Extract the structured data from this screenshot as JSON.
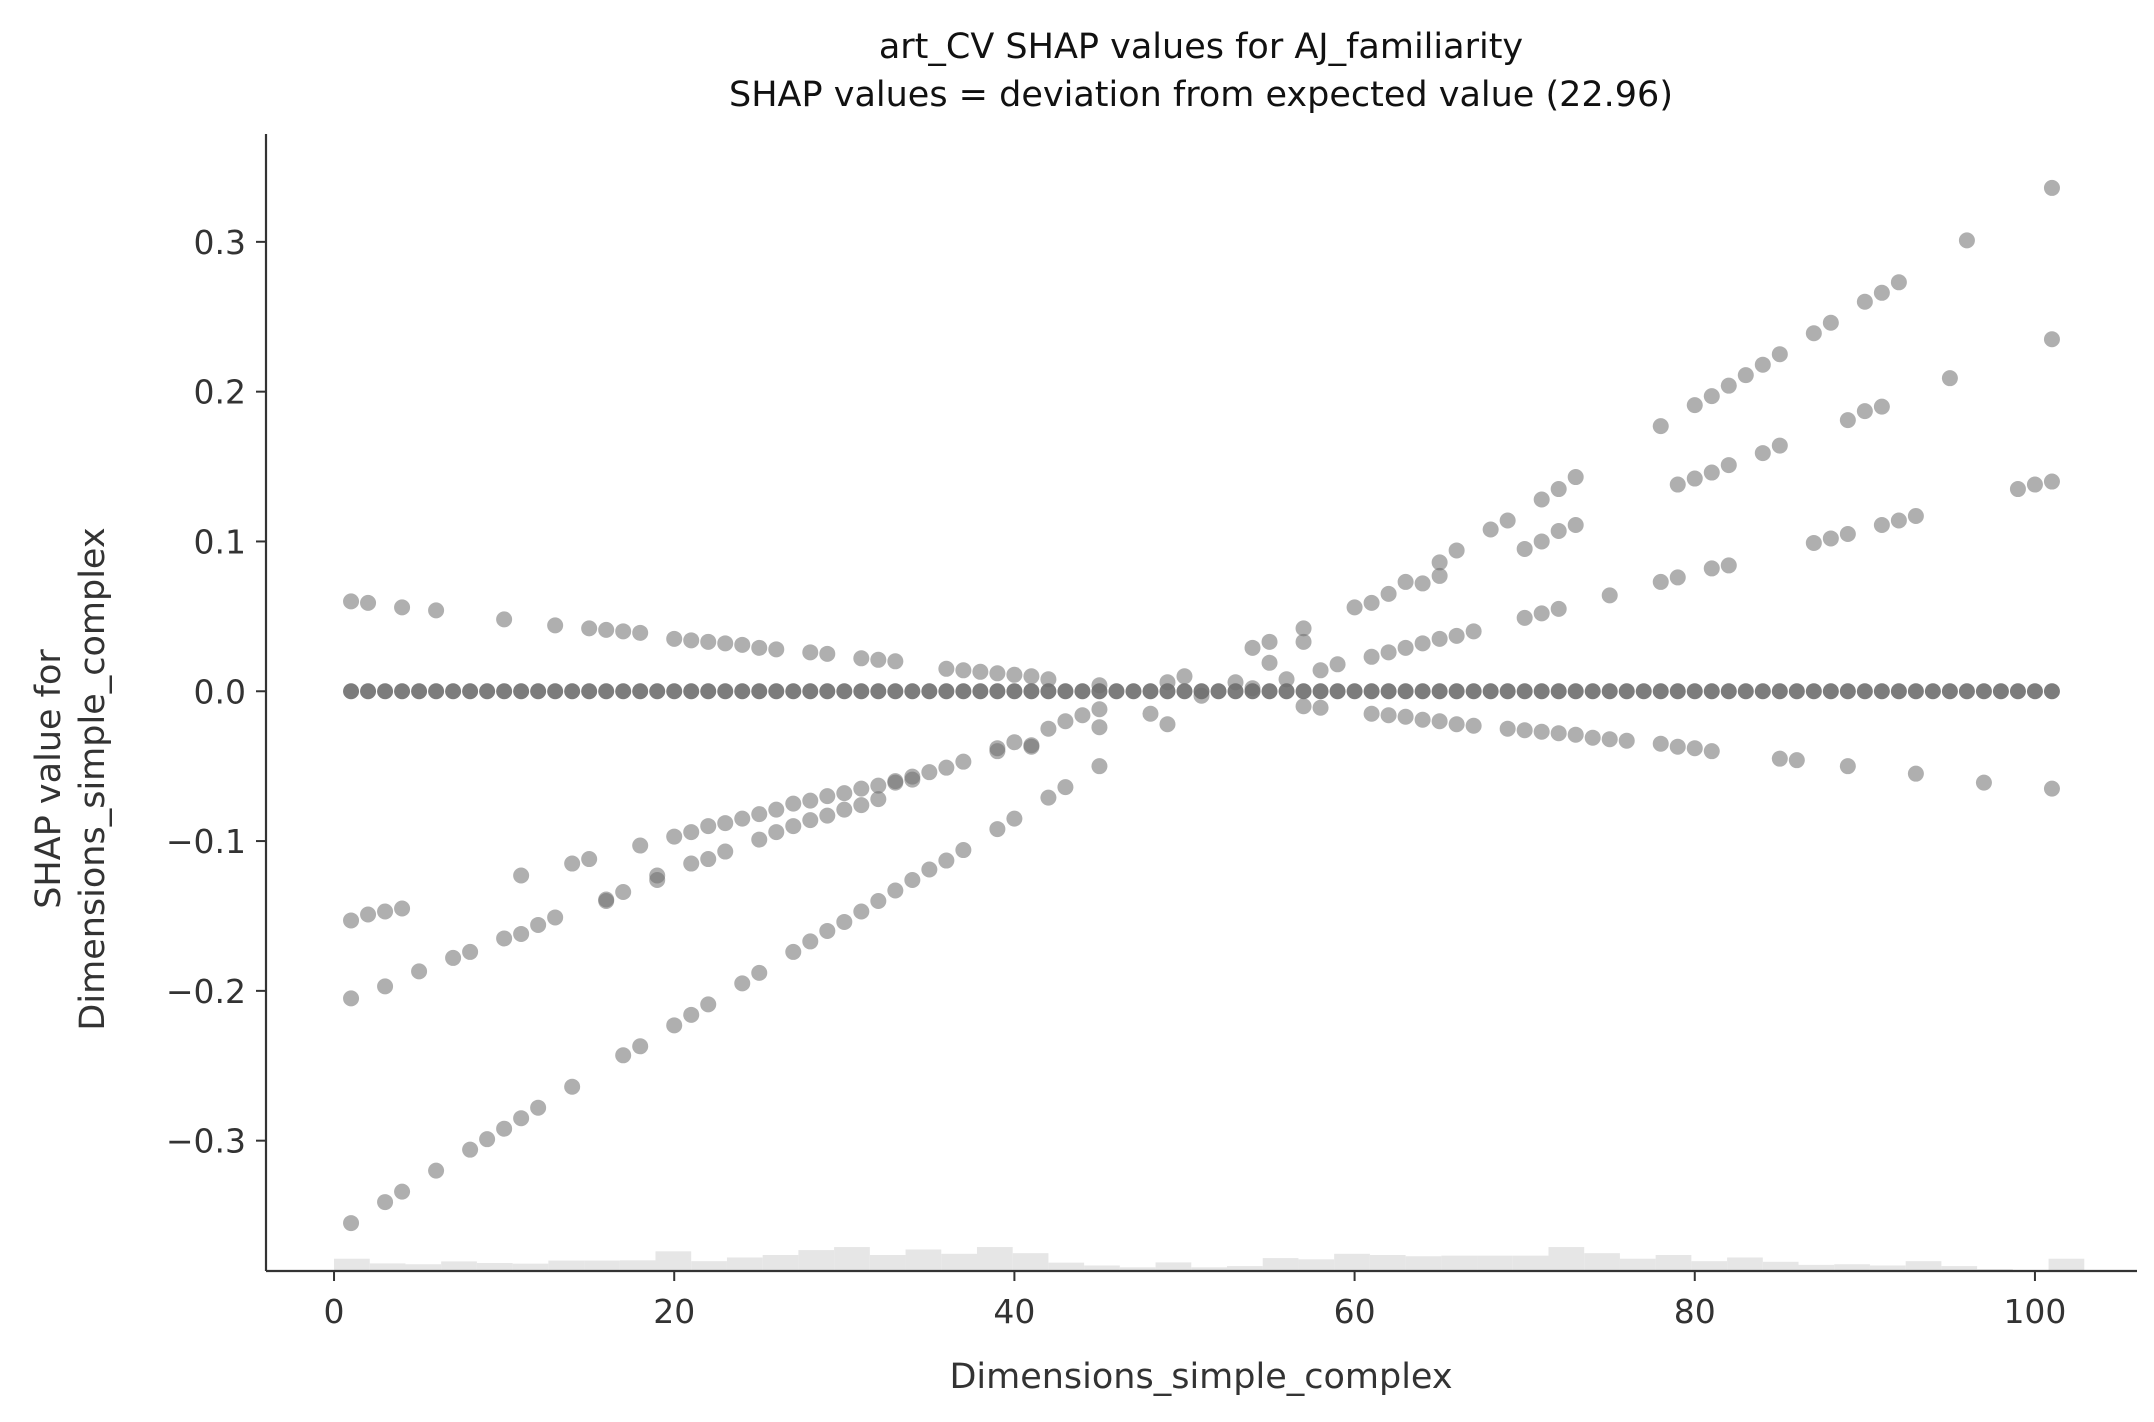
{
  "chart_data": {
    "type": "scatter",
    "title": "art_CV SHAP values for AJ_familiarity",
    "subtitle": "SHAP values = deviation from expected value (22.96)",
    "xlabel": "Dimensions_simple_complex",
    "ylabel": [
      "SHAP value for",
      "Dimensions_simple_complex"
    ],
    "xlim": [
      -4,
      106
    ],
    "ylim": [
      -0.387,
      0.372
    ],
    "xticks": [
      0,
      20,
      40,
      60,
      80,
      100
    ],
    "xtick_labels": [
      "0",
      "20",
      "40",
      "60",
      "80",
      "100"
    ],
    "yticks": [
      -0.3,
      -0.2,
      -0.1,
      0.0,
      0.1,
      0.2,
      0.3
    ],
    "ytick_labels": [
      "−0.3",
      "−0.2",
      "−0.1",
      "0.0",
      "0.1",
      "0.2",
      "0.3"
    ],
    "grid": false,
    "colors": {
      "points": "#6e6e6e",
      "histogram": "#e6e6e6",
      "axis": "#333333"
    },
    "zero_line": {
      "x_start": 1,
      "x_end": 101,
      "step": 1,
      "y": 0.0
    },
    "points": [
      [
        1,
        0.06
      ],
      [
        2,
        0.059
      ],
      [
        4,
        0.056
      ],
      [
        6,
        0.054
      ],
      [
        10,
        0.048
      ],
      [
        13,
        0.044
      ],
      [
        15,
        0.042
      ],
      [
        16,
        0.041
      ],
      [
        17,
        0.04
      ],
      [
        18,
        0.039
      ],
      [
        20,
        0.035
      ],
      [
        21,
        0.034
      ],
      [
        22,
        0.033
      ],
      [
        23,
        0.032
      ],
      [
        24,
        0.031
      ],
      [
        25,
        0.029
      ],
      [
        26,
        0.028
      ],
      [
        28,
        0.026
      ],
      [
        29,
        0.025
      ],
      [
        31,
        0.022
      ],
      [
        32,
        0.021
      ],
      [
        33,
        0.02
      ],
      [
        36,
        0.015
      ],
      [
        37,
        0.014
      ],
      [
        38,
        0.013
      ],
      [
        39,
        0.012
      ],
      [
        40,
        0.011
      ],
      [
        41,
        0.01
      ],
      [
        42,
        0.008
      ],
      [
        45,
        0.004
      ],
      [
        1,
        -0.153
      ],
      [
        2,
        -0.149
      ],
      [
        3,
        -0.147
      ],
      [
        4,
        -0.145
      ],
      [
        8,
        -0.174
      ],
      [
        10,
        -0.165
      ],
      [
        11,
        -0.123
      ],
      [
        12,
        -0.156
      ],
      [
        13,
        -0.151
      ],
      [
        14,
        -0.115
      ],
      [
        15,
        -0.112
      ],
      [
        16,
        -0.14
      ],
      [
        17,
        -0.134
      ],
      [
        18,
        -0.103
      ],
      [
        19,
        -0.126
      ],
      [
        20,
        -0.097
      ],
      [
        21,
        -0.094
      ],
      [
        22,
        -0.09
      ],
      [
        23,
        -0.088
      ],
      [
        24,
        -0.085
      ],
      [
        25,
        -0.082
      ],
      [
        26,
        -0.079
      ],
      [
        27,
        -0.075
      ],
      [
        28,
        -0.073
      ],
      [
        29,
        -0.07
      ],
      [
        30,
        -0.068
      ],
      [
        31,
        -0.065
      ],
      [
        32,
        -0.063
      ],
      [
        33,
        -0.06
      ],
      [
        34,
        -0.057
      ],
      [
        35,
        -0.054
      ],
      [
        36,
        -0.051
      ],
      [
        37,
        -0.047
      ],
      [
        39,
        -0.038
      ],
      [
        40,
        -0.034
      ],
      [
        41,
        -0.037
      ],
      [
        42,
        -0.025
      ],
      [
        43,
        -0.02
      ],
      [
        44,
        -0.016
      ],
      [
        45,
        -0.012
      ],
      [
        1,
        -0.205
      ],
      [
        3,
        -0.197
      ],
      [
        5,
        -0.187
      ],
      [
        7,
        -0.178
      ],
      [
        11,
        -0.162
      ],
      [
        16,
        -0.139
      ],
      [
        19,
        -0.123
      ],
      [
        21,
        -0.115
      ],
      [
        22,
        -0.112
      ],
      [
        23,
        -0.107
      ],
      [
        25,
        -0.099
      ],
      [
        26,
        -0.094
      ],
      [
        27,
        -0.09
      ],
      [
        28,
        -0.086
      ],
      [
        29,
        -0.083
      ],
      [
        30,
        -0.079
      ],
      [
        31,
        -0.076
      ],
      [
        32,
        -0.072
      ],
      [
        33,
        -0.061
      ],
      [
        34,
        -0.059
      ],
      [
        39,
        -0.04
      ],
      [
        41,
        -0.036
      ],
      [
        45,
        -0.024
      ],
      [
        1,
        -0.355
      ],
      [
        3,
        -0.341
      ],
      [
        4,
        -0.334
      ],
      [
        6,
        -0.32
      ],
      [
        8,
        -0.306
      ],
      [
        9,
        -0.299
      ],
      [
        10,
        -0.292
      ],
      [
        11,
        -0.285
      ],
      [
        12,
        -0.278
      ],
      [
        14,
        -0.264
      ],
      [
        17,
        -0.243
      ],
      [
        18,
        -0.237
      ],
      [
        20,
        -0.223
      ],
      [
        21,
        -0.216
      ],
      [
        22,
        -0.209
      ],
      [
        24,
        -0.195
      ],
      [
        25,
        -0.188
      ],
      [
        27,
        -0.174
      ],
      [
        28,
        -0.167
      ],
      [
        29,
        -0.16
      ],
      [
        30,
        -0.154
      ],
      [
        31,
        -0.147
      ],
      [
        32,
        -0.14
      ],
      [
        33,
        -0.133
      ],
      [
        34,
        -0.126
      ],
      [
        35,
        -0.119
      ],
      [
        36,
        -0.113
      ],
      [
        37,
        -0.106
      ],
      [
        39,
        -0.092
      ],
      [
        40,
        -0.085
      ],
      [
        42,
        -0.071
      ],
      [
        43,
        -0.064
      ],
      [
        45,
        -0.05
      ],
      [
        48,
        -0.015
      ],
      [
        49,
        -0.022
      ],
      [
        49,
        0.006
      ],
      [
        50,
        0.01
      ],
      [
        51,
        -0.003
      ],
      [
        53,
        0.006
      ],
      [
        54,
        0.002
      ],
      [
        54,
        0.029
      ],
      [
        55,
        0.033
      ],
      [
        55,
        0.019
      ],
      [
        56,
        0.008
      ],
      [
        57,
        0.042
      ],
      [
        57,
        0.033
      ],
      [
        57,
        -0.01
      ],
      [
        58,
        -0.011
      ],
      [
        58,
        0.014
      ],
      [
        59,
        0.018
      ],
      [
        60,
        0.056
      ],
      [
        61,
        0.059
      ],
      [
        62,
        0.065
      ],
      [
        63,
        0.073
      ],
      [
        64,
        0.072
      ],
      [
        65,
        0.086
      ],
      [
        65,
        0.077
      ],
      [
        66,
        0.094
      ],
      [
        68,
        0.108
      ],
      [
        69,
        0.114
      ],
      [
        70,
        0.095
      ],
      [
        71,
        0.1
      ],
      [
        71,
        0.128
      ],
      [
        72,
        0.135
      ],
      [
        72,
        0.107
      ],
      [
        73,
        0.111
      ],
      [
        73,
        0.143
      ],
      [
        61,
        0.023
      ],
      [
        62,
        0.026
      ],
      [
        63,
        0.029
      ],
      [
        64,
        0.032
      ],
      [
        65,
        0.035
      ],
      [
        66,
        0.037
      ],
      [
        67,
        0.04
      ],
      [
        70,
        0.049
      ],
      [
        71,
        0.052
      ],
      [
        72,
        0.055
      ],
      [
        75,
        0.064
      ],
      [
        78,
        0.073
      ],
      [
        79,
        0.076
      ],
      [
        81,
        0.082
      ],
      [
        82,
        0.084
      ],
      [
        87,
        0.099
      ],
      [
        88,
        0.102
      ],
      [
        89,
        0.105
      ],
      [
        91,
        0.111
      ],
      [
        92,
        0.114
      ],
      [
        93,
        0.117
      ],
      [
        99,
        0.135
      ],
      [
        100,
        0.138
      ],
      [
        101,
        0.14
      ],
      [
        78,
        0.177
      ],
      [
        79,
        0.138
      ],
      [
        80,
        0.191
      ],
      [
        80,
        0.142
      ],
      [
        81,
        0.197
      ],
      [
        81,
        0.146
      ],
      [
        82,
        0.204
      ],
      [
        82,
        0.151
      ],
      [
        83,
        0.211
      ],
      [
        84,
        0.218
      ],
      [
        84,
        0.159
      ],
      [
        85,
        0.225
      ],
      [
        85,
        0.164
      ],
      [
        87,
        0.239
      ],
      [
        88,
        0.246
      ],
      [
        89,
        0.181
      ],
      [
        90,
        0.26
      ],
      [
        90,
        0.187
      ],
      [
        91,
        0.266
      ],
      [
        91,
        0.19
      ],
      [
        92,
        0.273
      ],
      [
        95,
        0.209
      ],
      [
        96,
        0.301
      ],
      [
        101,
        0.336
      ],
      [
        101,
        0.235
      ],
      [
        61,
        -0.015
      ],
      [
        62,
        -0.016
      ],
      [
        63,
        -0.017
      ],
      [
        64,
        -0.019
      ],
      [
        65,
        -0.02
      ],
      [
        66,
        -0.022
      ],
      [
        67,
        -0.023
      ],
      [
        69,
        -0.025
      ],
      [
        70,
        -0.026
      ],
      [
        71,
        -0.027
      ],
      [
        72,
        -0.028
      ],
      [
        73,
        -0.029
      ],
      [
        74,
        -0.031
      ],
      [
        75,
        -0.032
      ],
      [
        76,
        -0.033
      ],
      [
        78,
        -0.035
      ],
      [
        79,
        -0.037
      ],
      [
        80,
        -0.038
      ],
      [
        81,
        -0.04
      ],
      [
        85,
        -0.045
      ],
      [
        86,
        -0.046
      ],
      [
        89,
        -0.05
      ],
      [
        93,
        -0.055
      ],
      [
        97,
        -0.061
      ],
      [
        101,
        -0.065
      ]
    ],
    "histogram": {
      "bins": [
        [
          0,
          2.1,
          1.0
        ],
        [
          2.1,
          4.2,
          0.62
        ],
        [
          4.2,
          6.3,
          0.55
        ],
        [
          6.3,
          8.4,
          0.78
        ],
        [
          8.4,
          10.5,
          0.65
        ],
        [
          10.5,
          12.6,
          0.6
        ],
        [
          12.6,
          14.7,
          0.85
        ],
        [
          14.7,
          16.8,
          0.85
        ],
        [
          16.8,
          18.9,
          0.87
        ],
        [
          18.9,
          21,
          1.6
        ],
        [
          21,
          23.1,
          0.8
        ],
        [
          23.1,
          25.2,
          1.1
        ],
        [
          25.2,
          27.3,
          1.3
        ],
        [
          27.3,
          29.4,
          1.7
        ],
        [
          29.4,
          31.5,
          1.95
        ],
        [
          31.5,
          33.6,
          1.3
        ],
        [
          33.6,
          35.7,
          1.75
        ],
        [
          35.7,
          37.8,
          1.4
        ],
        [
          37.8,
          39.9,
          1.95
        ],
        [
          39.9,
          42,
          1.45
        ],
        [
          42,
          44.1,
          0.68
        ],
        [
          44.1,
          46.2,
          0.45
        ],
        [
          46.2,
          48.3,
          0.3
        ],
        [
          48.3,
          50.4,
          0.7
        ],
        [
          50.4,
          52.5,
          0.3
        ],
        [
          52.5,
          54.6,
          0.4
        ],
        [
          54.6,
          56.7,
          1.05
        ],
        [
          56.7,
          58.8,
          0.95
        ],
        [
          58.8,
          60.9,
          1.4
        ],
        [
          60.9,
          63,
          1.3
        ],
        [
          63,
          65.1,
          1.2
        ],
        [
          65.1,
          67.2,
          1.25
        ],
        [
          67.2,
          69.3,
          1.25
        ],
        [
          69.3,
          71.4,
          1.25
        ],
        [
          71.4,
          73.5,
          1.95
        ],
        [
          73.5,
          75.6,
          1.45
        ],
        [
          75.6,
          77.7,
          1.0
        ],
        [
          77.7,
          79.8,
          1.3
        ],
        [
          79.8,
          81.9,
          0.8
        ],
        [
          81.9,
          84,
          1.1
        ],
        [
          84,
          86.1,
          0.75
        ],
        [
          86.1,
          88.2,
          0.5
        ],
        [
          88.2,
          90.3,
          0.55
        ],
        [
          90.3,
          92.4,
          0.45
        ],
        [
          92.4,
          94.5,
          0.8
        ],
        [
          94.5,
          96.6,
          0.4
        ],
        [
          96.6,
          98.7,
          0.15
        ],
        [
          98.7,
          100.8,
          0.06
        ],
        [
          100.8,
          102.9,
          1.0
        ]
      ],
      "unit_height_data": 0.0082
    }
  }
}
